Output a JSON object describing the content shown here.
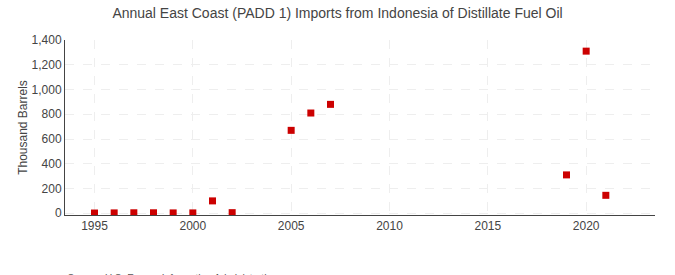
{
  "chart_data": {
    "type": "scatter",
    "title": "Annual East Coast (PADD 1) Imports from Indonesia of Distillate Fuel Oil",
    "y_label": "Thousand Barrels",
    "annotations": [
      "Source: U.S. Energy Information Administration"
    ],
    "x": [
      1995,
      1996,
      1997,
      1998,
      1999,
      2000,
      2001,
      2002,
      2005,
      2006,
      2007,
      2019,
      2020,
      2021
    ],
    "values": [
      2,
      3,
      4,
      4,
      3,
      3,
      100,
      5,
      670,
      810,
      880,
      310,
      1310,
      145
    ],
    "color": "#cc0000",
    "marker": "square",
    "xlim": [
      1993.5,
      2023.5
    ],
    "xticks": [
      1995,
      2000,
      2005,
      2010,
      2015,
      2020
    ],
    "ylim": [
      -14,
      1400
    ],
    "yticks": [
      0,
      200,
      400,
      600,
      800,
      {
        "value": 1000,
        "label": "1,000"
      },
      {
        "value": 1200,
        "label": "1,200"
      },
      {
        "value": 1400,
        "label": "1,400"
      }
    ],
    "grid": true
  }
}
